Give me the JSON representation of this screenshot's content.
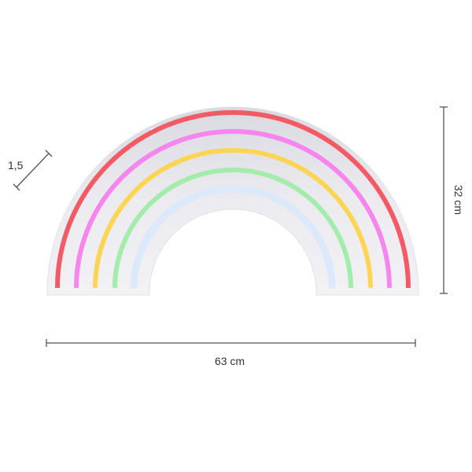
{
  "dimensions": {
    "width_label": "63 cm",
    "height_label": "32 cm",
    "depth_label": "1,5"
  },
  "colors": {
    "plate": "#ebebf0",
    "arcs": [
      "#f25a66",
      "#f685ee",
      "#fcd555",
      "#a3ecab",
      "#dbe9fb"
    ]
  }
}
